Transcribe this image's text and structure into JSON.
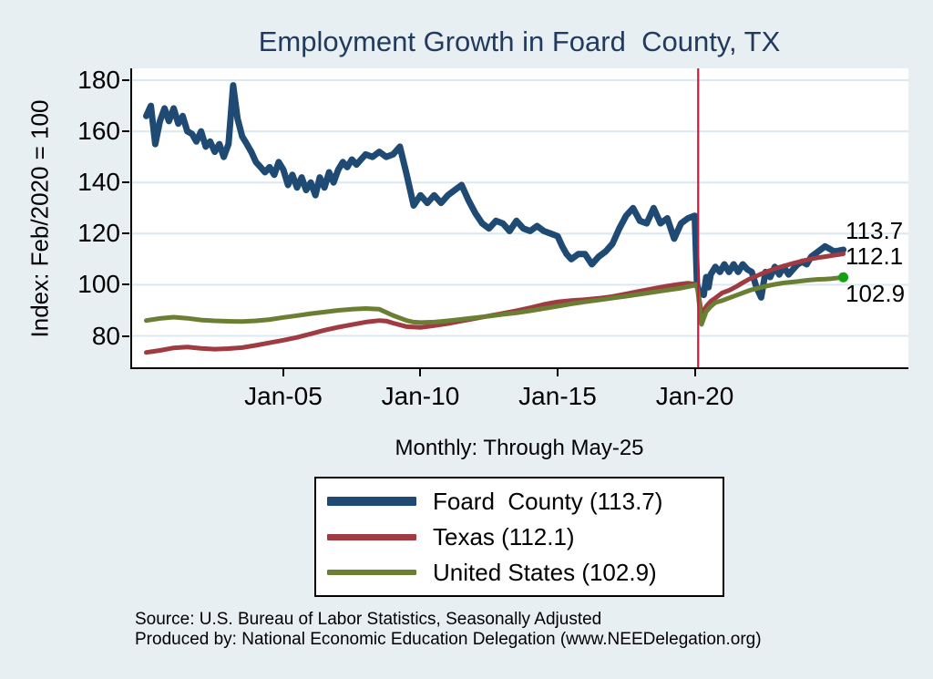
{
  "colors": {
    "background": "#e8eff3",
    "plot_background": "#ffffff",
    "gridline": "#dce8f0",
    "axis": "#000000",
    "title_text": "#213a5d",
    "reference_line": "#cc1a3e",
    "end_marker": "#14a014"
  },
  "footer": {
    "line1": "Source: U.S. Bureau of Labor Statistics, Seasonally Adjusted",
    "line2": "Produced by: National Economic Education Delegation (www.NEEDelegation.org)"
  },
  "chart_data": {
    "type": "line",
    "title": "Employment Growth in Foard  County, TX",
    "subtitle": "Monthly: Through May-25",
    "ylabel": "Index: Feb/2020 = 100",
    "xlabel": "",
    "grid": true,
    "legend_position": "below",
    "ylim": [
      66.99,
      184.64
    ],
    "xlim": [
      1999.42,
      2027.79
    ],
    "y_ticks": [
      80,
      100,
      120,
      140,
      160,
      180
    ],
    "x_ticks": [
      {
        "t": 2005,
        "label": "Jan-05"
      },
      {
        "t": 2010,
        "label": "Jan-10"
      },
      {
        "t": 2015,
        "label": "Jan-15"
      },
      {
        "t": 2020,
        "label": "Jan-20"
      }
    ],
    "reference_line_t": 2020.125,
    "series": [
      {
        "name": "Foard  County",
        "legend_label": "Foard  County (113.7)",
        "end_label": "113.7",
        "end_value": 113.7,
        "color": "#1f4a73",
        "width": 7,
        "swatch_height": 10,
        "end_marker": false,
        "points": [
          [
            2000.0,
            166
          ],
          [
            2000.17,
            170
          ],
          [
            2000.33,
            155
          ],
          [
            2000.5,
            164
          ],
          [
            2000.67,
            169
          ],
          [
            2000.83,
            164
          ],
          [
            2001.0,
            169
          ],
          [
            2001.17,
            163
          ],
          [
            2001.33,
            166
          ],
          [
            2001.5,
            160
          ],
          [
            2001.67,
            159
          ],
          [
            2001.83,
            156
          ],
          [
            2002.0,
            160
          ],
          [
            2002.17,
            154
          ],
          [
            2002.33,
            156
          ],
          [
            2002.5,
            152
          ],
          [
            2002.67,
            155
          ],
          [
            2002.83,
            150
          ],
          [
            2003.0,
            155
          ],
          [
            2003.17,
            178
          ],
          [
            2003.33,
            165
          ],
          [
            2003.5,
            158
          ],
          [
            2003.67,
            155
          ],
          [
            2003.83,
            152
          ],
          [
            2004.0,
            148
          ],
          [
            2004.17,
            146
          ],
          [
            2004.33,
            144
          ],
          [
            2004.5,
            146
          ],
          [
            2004.67,
            143
          ],
          [
            2004.83,
            148
          ],
          [
            2005.0,
            145
          ],
          [
            2005.17,
            139
          ],
          [
            2005.33,
            143
          ],
          [
            2005.5,
            138
          ],
          [
            2005.67,
            142
          ],
          [
            2005.83,
            137
          ],
          [
            2006.0,
            140
          ],
          [
            2006.17,
            135
          ],
          [
            2006.33,
            142
          ],
          [
            2006.5,
            138
          ],
          [
            2006.67,
            144
          ],
          [
            2006.83,
            140
          ],
          [
            2007.0,
            145
          ],
          [
            2007.17,
            148
          ],
          [
            2007.33,
            146
          ],
          [
            2007.5,
            149
          ],
          [
            2007.67,
            147
          ],
          [
            2007.83,
            149
          ],
          [
            2008.0,
            151
          ],
          [
            2008.25,
            150
          ],
          [
            2008.5,
            152
          ],
          [
            2008.75,
            150
          ],
          [
            2009.0,
            151
          ],
          [
            2009.25,
            154
          ],
          [
            2009.5,
            143
          ],
          [
            2009.75,
            131
          ],
          [
            2010.0,
            135
          ],
          [
            2010.25,
            132
          ],
          [
            2010.5,
            135
          ],
          [
            2010.75,
            132
          ],
          [
            2011.0,
            135
          ],
          [
            2011.25,
            137
          ],
          [
            2011.5,
            139
          ],
          [
            2011.75,
            133
          ],
          [
            2012.0,
            128
          ],
          [
            2012.25,
            124
          ],
          [
            2012.5,
            122
          ],
          [
            2012.75,
            125
          ],
          [
            2013.0,
            124
          ],
          [
            2013.25,
            121
          ],
          [
            2013.5,
            125
          ],
          [
            2013.75,
            122
          ],
          [
            2014.0,
            121
          ],
          [
            2014.25,
            123
          ],
          [
            2014.5,
            121
          ],
          [
            2014.75,
            120
          ],
          [
            2015.0,
            119
          ],
          [
            2015.17,
            115
          ],
          [
            2015.33,
            112
          ],
          [
            2015.5,
            110
          ],
          [
            2015.75,
            112
          ],
          [
            2016.0,
            112
          ],
          [
            2016.25,
            108
          ],
          [
            2016.5,
            111
          ],
          [
            2016.75,
            113
          ],
          [
            2017.0,
            116
          ],
          [
            2017.25,
            122
          ],
          [
            2017.5,
            127
          ],
          [
            2017.75,
            130
          ],
          [
            2018.0,
            125
          ],
          [
            2018.25,
            124
          ],
          [
            2018.5,
            130
          ],
          [
            2018.75,
            124
          ],
          [
            2019.0,
            126
          ],
          [
            2019.25,
            118
          ],
          [
            2019.5,
            124
          ],
          [
            2019.75,
            126
          ],
          [
            2020.0,
            127
          ],
          [
            2020.083,
            100
          ],
          [
            2020.17,
            97
          ],
          [
            2020.33,
            96
          ],
          [
            2020.42,
            103
          ],
          [
            2020.5,
            99
          ],
          [
            2020.58,
            104
          ],
          [
            2020.75,
            107
          ],
          [
            2020.92,
            105
          ],
          [
            2021.08,
            108
          ],
          [
            2021.25,
            105
          ],
          [
            2021.42,
            108
          ],
          [
            2021.58,
            105
          ],
          [
            2021.75,
            108
          ],
          [
            2021.92,
            106
          ],
          [
            2022.08,
            105
          ],
          [
            2022.25,
            99
          ],
          [
            2022.42,
            95
          ],
          [
            2022.58,
            105
          ],
          [
            2022.75,
            103
          ],
          [
            2022.92,
            107
          ],
          [
            2023.08,
            104
          ],
          [
            2023.25,
            107
          ],
          [
            2023.42,
            104
          ],
          [
            2023.58,
            106
          ],
          [
            2023.75,
            108
          ],
          [
            2023.92,
            109
          ],
          [
            2024.08,
            108
          ],
          [
            2024.25,
            111
          ],
          [
            2024.5,
            113
          ],
          [
            2024.75,
            115
          ],
          [
            2024.92,
            114
          ],
          [
            2025.08,
            113
          ],
          [
            2025.25,
            113.3
          ],
          [
            2025.417,
            113.7
          ]
        ]
      },
      {
        "name": "Texas",
        "legend_label": "Texas (112.1)",
        "end_label": "112.1",
        "end_value": 112.1,
        "color": "#a03b42",
        "width": 5,
        "swatch_height": 7,
        "end_marker": false,
        "points": [
          [
            2000.0,
            73.5
          ],
          [
            2000.5,
            74.3
          ],
          [
            2001.0,
            75.3
          ],
          [
            2001.5,
            75.6
          ],
          [
            2002.0,
            75.1
          ],
          [
            2002.5,
            74.8
          ],
          [
            2003.0,
            75.0
          ],
          [
            2003.5,
            75.4
          ],
          [
            2004.0,
            76.3
          ],
          [
            2004.5,
            77.3
          ],
          [
            2005.0,
            78.3
          ],
          [
            2005.5,
            79.4
          ],
          [
            2006.0,
            80.8
          ],
          [
            2006.5,
            82.2
          ],
          [
            2007.0,
            83.4
          ],
          [
            2007.5,
            84.4
          ],
          [
            2008.0,
            85.4
          ],
          [
            2008.5,
            86.0
          ],
          [
            2008.75,
            85.8
          ],
          [
            2009.0,
            85.0
          ],
          [
            2009.5,
            83.6
          ],
          [
            2010.0,
            83.3
          ],
          [
            2010.5,
            84.0
          ],
          [
            2011.0,
            84.8
          ],
          [
            2011.5,
            85.8
          ],
          [
            2012.0,
            86.8
          ],
          [
            2012.5,
            87.8
          ],
          [
            2013.0,
            88.8
          ],
          [
            2013.5,
            89.8
          ],
          [
            2014.0,
            91.0
          ],
          [
            2014.5,
            92.3
          ],
          [
            2015.0,
            93.3
          ],
          [
            2015.5,
            93.8
          ],
          [
            2016.0,
            94.2
          ],
          [
            2016.5,
            94.7
          ],
          [
            2017.0,
            95.4
          ],
          [
            2017.5,
            96.4
          ],
          [
            2018.0,
            97.5
          ],
          [
            2018.5,
            98.5
          ],
          [
            2019.0,
            99.5
          ],
          [
            2019.5,
            100.3
          ],
          [
            2019.75,
            100.6
          ],
          [
            2020.0,
            100.3
          ],
          [
            2020.083,
            100
          ],
          [
            2020.25,
            88.5
          ],
          [
            2020.42,
            91.5
          ],
          [
            2020.58,
            93.5
          ],
          [
            2020.75,
            94.8
          ],
          [
            2021.0,
            96.8
          ],
          [
            2021.25,
            97.8
          ],
          [
            2021.5,
            99.2
          ],
          [
            2021.75,
            100.8
          ],
          [
            2022.0,
            102.3
          ],
          [
            2022.25,
            103.4
          ],
          [
            2022.5,
            104.6
          ],
          [
            2022.75,
            105.6
          ],
          [
            2023.0,
            106.6
          ],
          [
            2023.25,
            107.3
          ],
          [
            2023.5,
            108.1
          ],
          [
            2023.75,
            108.8
          ],
          [
            2024.0,
            109.5
          ],
          [
            2024.25,
            110.1
          ],
          [
            2024.5,
            110.6
          ],
          [
            2024.75,
            111.0
          ],
          [
            2025.0,
            111.4
          ],
          [
            2025.25,
            111.8
          ],
          [
            2025.417,
            112.1
          ]
        ]
      },
      {
        "name": "United States",
        "legend_label": "United States (102.9)",
        "end_label": "102.9",
        "end_value": 102.9,
        "color": "#6b7f33",
        "width": 5,
        "swatch_height": 6,
        "end_marker": true,
        "points": [
          [
            2000.0,
            86.0
          ],
          [
            2000.5,
            86.8
          ],
          [
            2001.0,
            87.3
          ],
          [
            2001.5,
            86.9
          ],
          [
            2002.0,
            86.2
          ],
          [
            2002.5,
            85.9
          ],
          [
            2003.0,
            85.7
          ],
          [
            2003.5,
            85.6
          ],
          [
            2004.0,
            85.9
          ],
          [
            2004.5,
            86.4
          ],
          [
            2005.0,
            87.2
          ],
          [
            2005.5,
            87.9
          ],
          [
            2006.0,
            88.7
          ],
          [
            2006.5,
            89.3
          ],
          [
            2007.0,
            90.0
          ],
          [
            2007.5,
            90.4
          ],
          [
            2008.0,
            90.7
          ],
          [
            2008.5,
            90.4
          ],
          [
            2009.0,
            88.0
          ],
          [
            2009.5,
            86.0
          ],
          [
            2009.75,
            85.4
          ],
          [
            2010.0,
            85.2
          ],
          [
            2010.5,
            85.4
          ],
          [
            2011.0,
            85.9
          ],
          [
            2011.5,
            86.5
          ],
          [
            2012.0,
            87.1
          ],
          [
            2012.5,
            87.7
          ],
          [
            2013.0,
            88.4
          ],
          [
            2013.5,
            89.0
          ],
          [
            2014.0,
            89.8
          ],
          [
            2014.5,
            90.7
          ],
          [
            2015.0,
            91.6
          ],
          [
            2015.5,
            92.5
          ],
          [
            2016.0,
            93.3
          ],
          [
            2016.5,
            94.0
          ],
          [
            2017.0,
            94.8
          ],
          [
            2017.5,
            95.5
          ],
          [
            2018.0,
            96.3
          ],
          [
            2018.5,
            97.1
          ],
          [
            2019.0,
            97.9
          ],
          [
            2019.5,
            98.7
          ],
          [
            2020.0,
            99.8
          ],
          [
            2020.083,
            100
          ],
          [
            2020.25,
            84.5
          ],
          [
            2020.42,
            89.5
          ],
          [
            2020.58,
            91.5
          ],
          [
            2020.75,
            93.0
          ],
          [
            2021.0,
            93.8
          ],
          [
            2021.25,
            94.8
          ],
          [
            2021.5,
            95.8
          ],
          [
            2021.75,
            96.8
          ],
          [
            2022.0,
            97.8
          ],
          [
            2022.25,
            98.5
          ],
          [
            2022.5,
            99.2
          ],
          [
            2022.75,
            99.8
          ],
          [
            2023.0,
            100.3
          ],
          [
            2023.25,
            100.7
          ],
          [
            2023.5,
            101.0
          ],
          [
            2023.75,
            101.3
          ],
          [
            2024.0,
            101.6
          ],
          [
            2024.25,
            101.9
          ],
          [
            2024.5,
            102.1
          ],
          [
            2024.75,
            102.2
          ],
          [
            2025.0,
            102.4
          ],
          [
            2025.25,
            102.7
          ],
          [
            2025.417,
            102.9
          ]
        ]
      }
    ]
  }
}
